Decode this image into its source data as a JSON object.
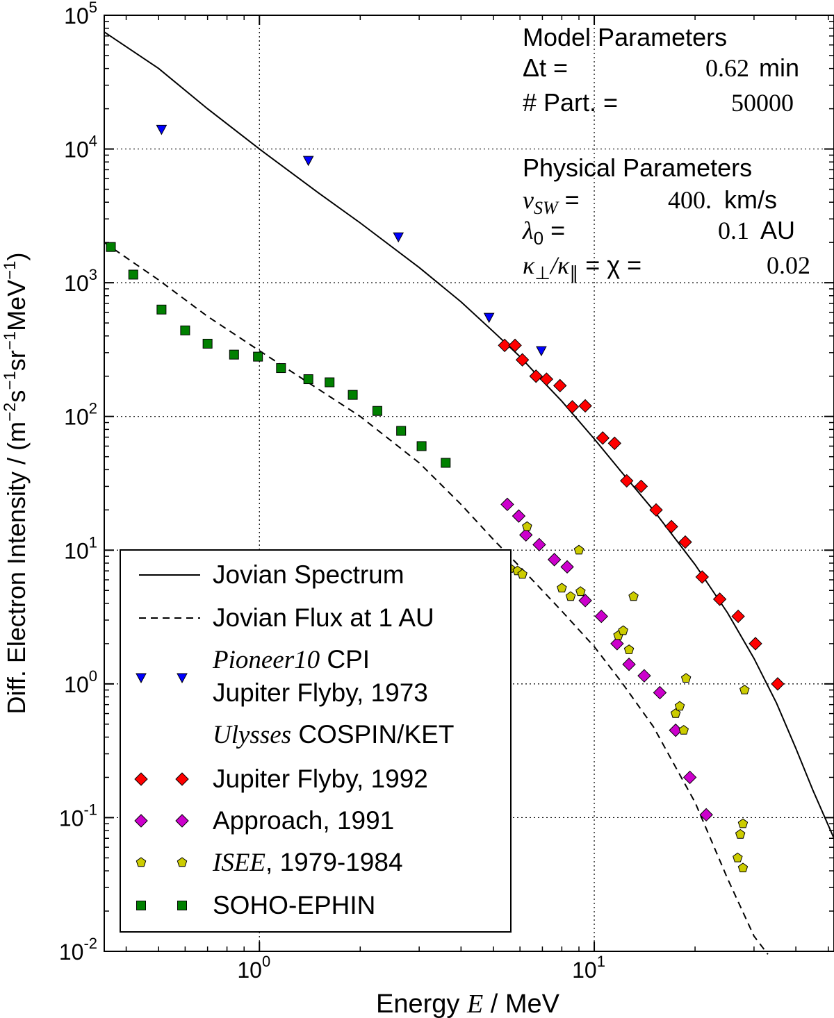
{
  "chart_data": {
    "type": "scatter",
    "xscale": "log",
    "yscale": "log",
    "xlim": [
      0.344,
      52
    ],
    "ylim": [
      0.01,
      100000
    ],
    "xlabel_prefix": "Energy ",
    "xlabel_var": "E",
    "xlabel_suffix": " / MeV",
    "ylabel": "Diff. Electron Intensity / (m",
    "ylabel_exp1": "−2",
    "ylabel_mid1": "s",
    "ylabel_exp2": "−1",
    "ylabel_mid2": "sr",
    "ylabel_exp3": "−1",
    "ylabel_mid3": "MeV",
    "ylabel_exp4": "−1",
    "ylabel_end": ")",
    "x_ticks": [
      {
        "value": 1,
        "base": "10",
        "exp": "0"
      },
      {
        "value": 10,
        "base": "10",
        "exp": "1"
      }
    ],
    "y_ticks": [
      {
        "value": 100000,
        "base": "10",
        "exp": "5"
      },
      {
        "value": 10000,
        "base": "10",
        "exp": "4"
      },
      {
        "value": 1000,
        "base": "10",
        "exp": "3"
      },
      {
        "value": 100,
        "base": "10",
        "exp": "2"
      },
      {
        "value": 10,
        "base": "10",
        "exp": "1"
      },
      {
        "value": 1,
        "base": "10",
        "exp": "0"
      },
      {
        "value": 0.1,
        "base": "10",
        "exp": "-1"
      },
      {
        "value": 0.01,
        "base": "10",
        "exp": "-2"
      }
    ],
    "grid": "dotted at decades",
    "series": [
      {
        "name": "Jovian Spectrum",
        "kind": "line",
        "style": "solid",
        "color": "#000000",
        "x": [
          0.344,
          0.5,
          0.7,
          1.0,
          1.5,
          2.0,
          3.0,
          4.0,
          5.0,
          6.0,
          7.0,
          8.0,
          10.0,
          12.0,
          15.0,
          20.0,
          25.0,
          30.0,
          35.0,
          40.0,
          45.0,
          52.0
        ],
        "y": [
          75000,
          40000,
          20000,
          10000,
          4700,
          2800,
          1300,
          720,
          430,
          280,
          185,
          130,
          68,
          39,
          20,
          7.8,
          3.4,
          1.55,
          0.72,
          0.33,
          0.16,
          0.07
        ]
      },
      {
        "name": "Jovian Flux at 1 AU",
        "kind": "line",
        "style": "dashed",
        "color": "#000000",
        "x": [
          0.344,
          0.5,
          0.7,
          1.0,
          1.5,
          2.0,
          3.0,
          4.0,
          5.0,
          6.0,
          7.0,
          8.0,
          10.0,
          12.0,
          15.0,
          20.0,
          25.0,
          30.0,
          33.0
        ],
        "y": [
          2000,
          1050,
          560,
          310,
          160,
          100,
          45,
          22,
          12,
          7.5,
          5,
          3.5,
          1.9,
          1.05,
          0.48,
          0.13,
          0.035,
          0.013,
          0.0095
        ]
      },
      {
        "name": "Pioneer10 CPI Jupiter Flyby, 1973",
        "kind": "marker",
        "marker": "triangle-down",
        "color": "#0000ff",
        "x": [
          0.51,
          1.4,
          2.6,
          4.85,
          6.95
        ],
        "y": [
          14000,
          8200,
          2200,
          550,
          310
        ]
      },
      {
        "name": "Ulysses COSPIN/KET Jupiter Flyby, 1992",
        "kind": "marker",
        "marker": "diamond",
        "color": "#ff0000",
        "x": [
          5.4,
          5.8,
          6.1,
          6.7,
          7.2,
          7.9,
          8.6,
          9.4,
          10.6,
          11.5,
          12.5,
          13.8,
          15.3,
          17.0,
          18.7,
          21.0,
          23.7,
          26.9,
          30.3,
          35.3
        ],
        "y": [
          340,
          340,
          265,
          200,
          190,
          170,
          118,
          120,
          69,
          63,
          33,
          30,
          20,
          15,
          11.5,
          6.3,
          4.3,
          3.2,
          2.0,
          1.0
        ]
      },
      {
        "name": "Ulysses COSPIN/KET Approach, 1991",
        "kind": "marker",
        "marker": "diamond",
        "color": "#cc00cc",
        "x": [
          5.5,
          5.95,
          6.25,
          6.85,
          7.6,
          8.3,
          9.4,
          10.5,
          11.7,
          12.7,
          14.1,
          15.7,
          17.5,
          19.3,
          21.6
        ],
        "y": [
          22,
          18,
          13,
          11,
          8.5,
          7.5,
          4.2,
          3.2,
          2.0,
          1.4,
          1.15,
          0.86,
          0.45,
          0.2,
          0.105
        ]
      },
      {
        "name": "ISEE, 1979-1984",
        "kind": "marker",
        "marker": "pentagon",
        "color": "#cccc00",
        "x": [
          5.6,
          5.9,
          6.1,
          6.3,
          8.0,
          8.5,
          9.0,
          9.1,
          11.8,
          12.2,
          12.7,
          13.1,
          17.5,
          18.0,
          18.5,
          18.8,
          26.8,
          27.3,
          27.8,
          27.8,
          28.1
        ],
        "y": [
          7.3,
          7.0,
          6.6,
          15.0,
          5.2,
          4.5,
          10.0,
          4.9,
          2.3,
          2.5,
          1.8,
          4.5,
          0.6,
          0.68,
          0.45,
          1.1,
          0.05,
          0.075,
          0.09,
          0.042,
          0.9
        ]
      },
      {
        "name": "SOHO-EPHIN",
        "kind": "marker",
        "marker": "square",
        "color": "#008000",
        "x": [
          0.36,
          0.42,
          0.51,
          0.6,
          0.7,
          0.84,
          0.99,
          1.16,
          1.4,
          1.62,
          1.9,
          2.25,
          2.65,
          3.05,
          3.6
        ],
        "y": [
          1850,
          1150,
          630,
          440,
          350,
          290,
          280,
          230,
          190,
          180,
          145,
          110,
          78,
          60,
          45
        ]
      }
    ],
    "legend": {
      "placement": "lower-left",
      "entries": [
        {
          "series": 0,
          "text": "Jovian Spectrum",
          "italic_prefix": ""
        },
        {
          "series": 1,
          "text": "Jovian Flux at 1 AU",
          "italic_prefix": ""
        },
        {
          "series": 2,
          "italic_prefix": "Pioneer10",
          "text": " CPI",
          "text2": "Jupiter Flyby, 1973"
        },
        {
          "series": -1,
          "italic_prefix": "Ulysses",
          "text": " COSPIN/KET"
        },
        {
          "series": 3,
          "text": "Jupiter Flyby, 1992",
          "italic_prefix": ""
        },
        {
          "series": 4,
          "text": "Approach, 1991",
          "italic_prefix": ""
        },
        {
          "series": 5,
          "italic_prefix": "ISEE",
          "text": ", 1979-1984"
        },
        {
          "series": 6,
          "text": "SOHO-EPHIN",
          "italic_prefix": ""
        }
      ]
    },
    "annotation": {
      "placement": "top-right",
      "model_title": "Model Parameters",
      "dt_label": "Δt =",
      "dt_value": "0.62",
      "dt_unit": "min",
      "part_label": "# Part. =",
      "part_value": "50000",
      "phys_title": "Physical Parameters",
      "vsw_var": "v",
      "vsw_sub": "SW",
      "vsw_eq": " =",
      "vsw_value": "400.",
      "vsw_unit": "km/s",
      "lambda_var": "λ",
      "lambda_sub": "0",
      "lambda_eq": " =",
      "lambda_value": "0.1",
      "lambda_unit": "AU",
      "kappa_label": "κ",
      "kappa_sub1": "⊥",
      "kappa_mid": "/κ",
      "kappa_sub2": "∥",
      "kappa_eq": " = χ =",
      "kappa_value": "0.02"
    }
  }
}
